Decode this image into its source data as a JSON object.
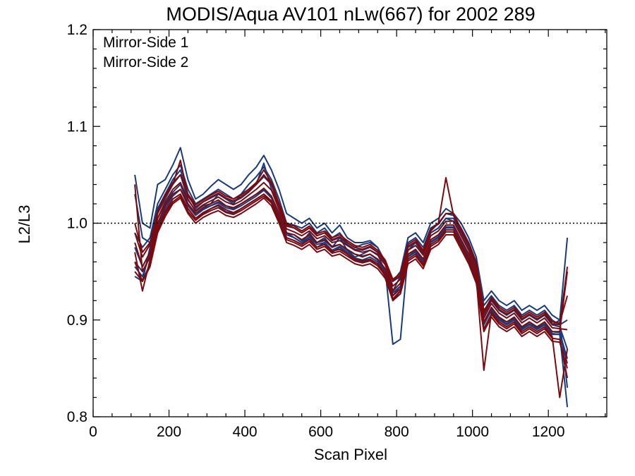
{
  "chart_data": {
    "type": "line",
    "title": "MODIS/Aqua AV101 nLw(667) for 2002 289",
    "xlabel": "Scan Pixel",
    "ylabel": "L2/L3",
    "xlim": [
      0,
      1354
    ],
    "ylim": [
      0.8,
      1.2
    ],
    "xticks": [
      0,
      200,
      400,
      600,
      800,
      1000,
      1200
    ],
    "xtick_labels": [
      "0",
      "200",
      "400",
      "600",
      "800",
      "1000",
      "1200"
    ],
    "yticks": [
      0.8,
      0.9,
      1.0,
      1.1,
      1.2
    ],
    "ytick_labels": [
      "0.8",
      "0.9",
      "1.0",
      "1.1",
      "1.2"
    ],
    "reference_line": {
      "y": 1.0,
      "style": "dotted"
    },
    "legend_placement": "top-left",
    "colors": {
      "mirror_side_1": "#1a3a7a",
      "mirror_side_2": "#7a0a10"
    },
    "x": [
      110,
      130,
      150,
      170,
      190,
      210,
      230,
      250,
      270,
      290,
      310,
      330,
      350,
      370,
      390,
      410,
      430,
      450,
      470,
      490,
      510,
      530,
      550,
      570,
      590,
      610,
      630,
      650,
      670,
      690,
      710,
      730,
      750,
      770,
      790,
      810,
      830,
      850,
      870,
      890,
      910,
      930,
      950,
      970,
      990,
      1010,
      1030,
      1050,
      1070,
      1090,
      1110,
      1130,
      1150,
      1170,
      1190,
      1210,
      1230,
      1250
    ],
    "base_profile": [
      0.985,
      0.962,
      0.972,
      1.0,
      1.02,
      1.033,
      1.038,
      1.022,
      1.012,
      1.018,
      1.022,
      1.025,
      1.02,
      1.018,
      1.022,
      1.027,
      1.032,
      1.038,
      1.03,
      1.012,
      0.992,
      0.99,
      0.985,
      0.99,
      0.982,
      0.985,
      0.978,
      0.98,
      0.975,
      0.97,
      0.968,
      0.97,
      0.965,
      0.955,
      0.935,
      0.94,
      0.97,
      0.975,
      0.965,
      0.985,
      0.99,
      1.0,
      1.0,
      0.985,
      0.97,
      0.95,
      0.9,
      0.915,
      0.905,
      0.9,
      0.905,
      0.895,
      0.9,
      0.895,
      0.9,
      0.89,
      0.89,
      0.88
    ],
    "series": [
      {
        "name": "Mirror-Side 1",
        "color": "#1a3a7a",
        "lines": [
          [
            0.945,
            0.94,
            0.975,
            1.01,
            1.025,
            1.04,
            1.05,
            1.025,
            1.012,
            1.018,
            1.02,
            1.03,
            1.025,
            1.02,
            1.03,
            1.035,
            1.04,
            1.048,
            1.04,
            1.02,
            0.99,
            0.985,
            0.98,
            0.99,
            0.98,
            0.985,
            0.975,
            0.985,
            0.972,
            0.965,
            0.968,
            0.972,
            0.968,
            0.95,
            0.925,
            0.935,
            0.972,
            0.98,
            0.968,
            0.99,
            0.995,
            1.005,
            1.002,
            0.99,
            0.975,
            0.955,
            0.91,
            0.92,
            0.91,
            0.905,
            0.91,
            0.9,
            0.905,
            0.9,
            0.905,
            0.895,
            0.9,
            0.985
          ],
          [
            0.99,
            0.975,
            0.985,
            1.02,
            1.035,
            1.05,
            1.06,
            1.035,
            1.02,
            1.025,
            1.03,
            1.035,
            1.03,
            1.025,
            1.03,
            1.04,
            1.048,
            1.058,
            1.045,
            1.025,
            1.0,
            0.998,
            0.995,
            1.0,
            0.99,
            0.995,
            0.985,
            0.99,
            0.98,
            0.975,
            0.978,
            0.98,
            0.975,
            0.96,
            0.93,
            0.945,
            0.98,
            0.985,
            0.975,
            0.995,
            1.0,
            1.01,
            1.008,
            0.995,
            0.98,
            0.96,
            0.915,
            0.925,
            0.915,
            0.91,
            0.915,
            0.905,
            0.91,
            0.905,
            0.91,
            0.9,
            0.895,
            0.9
          ],
          [
            1.05,
            1.0,
            0.995,
            1.04,
            1.045,
            1.06,
            1.078,
            1.045,
            1.025,
            1.03,
            1.038,
            1.045,
            1.04,
            1.035,
            1.04,
            1.05,
            1.058,
            1.07,
            1.055,
            1.035,
            1.01,
            1.005,
            1.0,
            1.005,
            0.995,
            1.0,
            0.99,
            0.998,
            0.985,
            0.98,
            0.98,
            0.982,
            0.975,
            0.96,
            0.94,
            0.95,
            0.985,
            0.99,
            0.98,
            1.0,
            1.005,
            1.015,
            1.01,
            1.0,
            0.985,
            0.965,
            0.92,
            0.93,
            0.92,
            0.915,
            0.92,
            0.91,
            0.915,
            0.91,
            0.915,
            0.905,
            0.9,
            0.83
          ],
          [
            0.96,
            0.95,
            0.965,
            0.995,
            1.012,
            1.025,
            1.03,
            1.015,
            1.005,
            1.01,
            1.015,
            1.018,
            1.012,
            1.01,
            1.015,
            1.02,
            1.025,
            1.03,
            1.022,
            1.005,
            0.985,
            0.982,
            0.978,
            0.985,
            0.975,
            0.98,
            0.97,
            0.975,
            0.968,
            0.962,
            0.96,
            0.962,
            0.958,
            0.945,
            0.92,
            0.93,
            0.965,
            0.97,
            0.958,
            0.98,
            0.985,
            0.995,
            0.995,
            0.98,
            0.965,
            0.945,
            0.895,
            0.91,
            0.9,
            0.895,
            0.9,
            0.89,
            0.895,
            0.89,
            0.895,
            0.885,
            0.885,
            0.81
          ],
          [
            0.975,
            0.955,
            0.97,
            1.005,
            1.02,
            1.032,
            1.04,
            1.02,
            1.01,
            1.015,
            1.018,
            1.022,
            1.018,
            1.015,
            1.02,
            1.025,
            1.03,
            1.035,
            1.028,
            1.01,
            0.99,
            0.988,
            0.982,
            0.988,
            0.98,
            0.982,
            0.975,
            0.978,
            0.972,
            0.968,
            0.965,
            0.968,
            0.962,
            0.952,
            0.875,
            0.88,
            0.968,
            0.972,
            0.962,
            0.983,
            0.988,
            0.998,
            0.998,
            0.983,
            0.968,
            0.948,
            0.898,
            0.912,
            0.902,
            0.898,
            0.902,
            0.892,
            0.898,
            0.892,
            0.898,
            0.888,
            0.887,
            0.86
          ],
          [
            1.03,
            0.985,
            0.98,
            1.015,
            1.03,
            1.045,
            1.055,
            1.03,
            1.015,
            1.022,
            1.026,
            1.03,
            1.026,
            1.022,
            1.026,
            1.032,
            1.04,
            1.062,
            1.035,
            1.018,
            0.998,
            0.995,
            0.99,
            0.995,
            0.987,
            0.99,
            0.982,
            0.985,
            0.978,
            0.973,
            0.972,
            0.975,
            0.97,
            0.958,
            0.94,
            0.945,
            0.975,
            0.98,
            0.97,
            0.99,
            0.995,
            1.005,
            1.005,
            0.99,
            0.975,
            0.955,
            0.905,
            0.92,
            0.91,
            0.905,
            0.91,
            0.9,
            0.905,
            0.9,
            0.905,
            0.895,
            0.893,
            0.87
          ],
          [
            0.955,
            0.945,
            0.968,
            0.998,
            1.015,
            1.028,
            1.035,
            1.018,
            1.008,
            1.014,
            1.018,
            1.021,
            1.016,
            1.014,
            1.018,
            1.023,
            1.028,
            1.034,
            1.026,
            1.008,
            0.988,
            0.985,
            0.98,
            0.986,
            0.978,
            0.98,
            0.972,
            0.976,
            0.97,
            0.964,
            0.962,
            0.965,
            0.96,
            0.95,
            0.928,
            0.935,
            0.966,
            0.971,
            0.96,
            0.981,
            0.986,
            0.996,
            0.996,
            0.981,
            0.966,
            0.946,
            0.896,
            0.911,
            0.901,
            0.896,
            0.901,
            0.891,
            0.896,
            0.891,
            0.896,
            0.886,
            0.885,
            0.855
          ]
        ]
      },
      {
        "name": "Mirror-Side 2",
        "color": "#7a0a10",
        "lines": [
          [
            1.04,
            0.95,
            0.965,
            1.0,
            1.018,
            1.03,
            1.035,
            1.02,
            1.01,
            1.016,
            1.02,
            1.024,
            1.018,
            1.016,
            1.02,
            1.025,
            1.03,
            1.036,
            1.028,
            1.01,
            0.99,
            0.988,
            0.983,
            0.988,
            0.98,
            0.983,
            0.976,
            0.978,
            0.973,
            0.968,
            0.966,
            0.968,
            0.963,
            0.953,
            0.93,
            0.938,
            0.968,
            0.973,
            0.963,
            0.983,
            0.988,
            0.998,
            0.998,
            0.983,
            0.968,
            0.948,
            0.898,
            0.913,
            0.903,
            0.898,
            0.903,
            0.893,
            0.898,
            0.893,
            0.898,
            0.888,
            0.888,
            0.95
          ],
          [
            0.96,
            0.94,
            0.958,
            0.992,
            1.01,
            1.022,
            1.028,
            1.012,
            1.003,
            1.009,
            1.013,
            1.016,
            1.011,
            1.009,
            1.013,
            1.018,
            1.023,
            1.028,
            1.021,
            1.003,
            0.983,
            0.98,
            0.976,
            0.981,
            0.973,
            0.976,
            0.969,
            0.971,
            0.966,
            0.961,
            0.959,
            0.961,
            0.956,
            0.946,
            0.922,
            0.93,
            0.961,
            0.966,
            0.956,
            0.976,
            0.981,
            0.991,
            0.991,
            0.976,
            0.961,
            0.941,
            0.891,
            0.906,
            0.896,
            0.891,
            0.896,
            0.886,
            0.891,
            0.886,
            0.891,
            0.881,
            0.88,
            0.84
          ],
          [
            0.99,
            0.965,
            0.978,
            1.01,
            1.028,
            1.04,
            1.065,
            1.028,
            1.017,
            1.022,
            1.027,
            1.031,
            1.026,
            1.023,
            1.027,
            1.033,
            1.04,
            1.05,
            1.04,
            1.018,
            0.997,
            0.995,
            0.99,
            0.995,
            0.987,
            0.99,
            0.983,
            0.986,
            0.98,
            0.975,
            0.973,
            0.976,
            0.97,
            0.96,
            0.94,
            0.946,
            0.976,
            0.981,
            0.97,
            0.992,
            1.0,
            1.047,
            1.008,
            0.992,
            0.977,
            0.957,
            0.907,
            0.921,
            0.911,
            0.906,
            0.911,
            0.901,
            0.906,
            0.901,
            0.906,
            0.896,
            0.895,
            0.955
          ],
          [
            0.97,
            0.93,
            0.962,
            0.995,
            1.012,
            1.025,
            1.03,
            1.015,
            1.005,
            1.011,
            1.015,
            1.019,
            1.014,
            1.011,
            1.015,
            1.02,
            1.025,
            1.03,
            1.023,
            1.005,
            0.985,
            0.982,
            0.978,
            0.983,
            0.975,
            0.978,
            0.971,
            0.973,
            0.968,
            0.963,
            0.961,
            0.963,
            0.958,
            0.948,
            0.925,
            0.932,
            0.963,
            0.968,
            0.958,
            0.978,
            0.983,
            0.993,
            0.993,
            0.978,
            0.963,
            0.943,
            0.848,
            0.908,
            0.898,
            0.893,
            0.898,
            0.888,
            0.893,
            0.888,
            0.893,
            0.883,
            0.82,
            0.87
          ],
          [
            1.0,
            0.97,
            0.98,
            1.012,
            1.03,
            1.042,
            1.05,
            1.03,
            1.019,
            1.024,
            1.029,
            1.033,
            1.028,
            1.025,
            1.029,
            1.035,
            1.042,
            1.055,
            1.042,
            1.02,
            0.999,
            0.997,
            0.992,
            0.997,
            0.989,
            0.992,
            0.985,
            0.988,
            0.982,
            0.977,
            0.975,
            0.978,
            0.972,
            0.962,
            0.942,
            0.948,
            0.978,
            0.983,
            0.972,
            0.994,
            0.999,
            1.01,
            1.01,
            0.994,
            0.979,
            0.959,
            0.909,
            0.923,
            0.913,
            0.908,
            0.913,
            0.903,
            0.908,
            0.903,
            0.908,
            0.898,
            0.897,
            0.925
          ],
          [
            0.95,
            0.94,
            0.955,
            0.99,
            1.007,
            1.02,
            1.026,
            1.01,
            1.0,
            1.006,
            1.01,
            1.013,
            1.008,
            1.006,
            1.01,
            1.015,
            1.02,
            1.026,
            1.018,
            1.0,
            0.98,
            0.977,
            0.973,
            0.978,
            0.97,
            0.973,
            0.966,
            0.968,
            0.963,
            0.958,
            0.956,
            0.958,
            0.953,
            0.943,
            0.92,
            0.927,
            0.958,
            0.963,
            0.953,
            0.973,
            0.978,
            0.988,
            0.988,
            0.973,
            0.958,
            0.938,
            0.888,
            0.903,
            0.893,
            0.888,
            0.893,
            0.883,
            0.888,
            0.883,
            0.888,
            0.878,
            0.877,
            0.85
          ],
          [
            0.98,
            0.955,
            0.97,
            1.005,
            1.022,
            1.035,
            1.042,
            1.024,
            1.013,
            1.019,
            1.023,
            1.027,
            1.022,
            1.019,
            1.023,
            1.029,
            1.035,
            1.042,
            1.034,
            1.014,
            0.994,
            0.991,
            0.987,
            0.992,
            0.984,
            0.987,
            0.98,
            0.982,
            0.977,
            0.972,
            0.97,
            0.972,
            0.967,
            0.957,
            0.935,
            0.942,
            0.972,
            0.977,
            0.967,
            0.987,
            0.992,
            1.002,
            1.002,
            0.987,
            0.972,
            0.952,
            0.902,
            0.917,
            0.907,
            0.902,
            0.907,
            0.897,
            0.902,
            0.897,
            0.902,
            0.892,
            0.891,
            0.89
          ]
        ]
      }
    ]
  }
}
